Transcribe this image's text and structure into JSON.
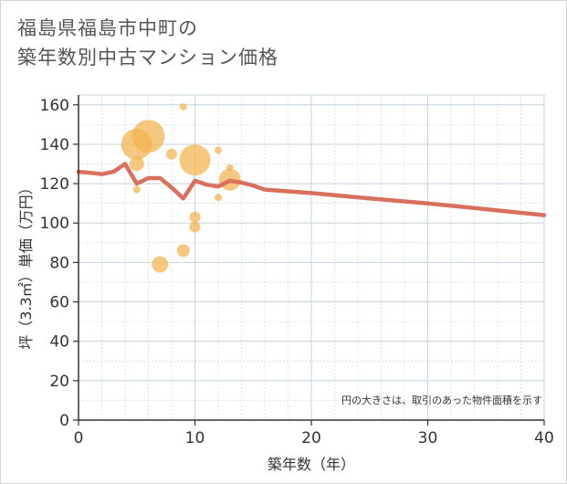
{
  "title_line1": "福島県福島市中町の",
  "title_line2": "築年数別中古マンション価格",
  "chart_data": {
    "type": "scatter",
    "title": "福島県福島市中町の築年数別中古マンション価格",
    "xlabel": "築年数（年）",
    "ylabel": "坪（3.3㎡）単価（万円）",
    "xlim": [
      0,
      40
    ],
    "ylim": [
      0,
      165
    ],
    "xticks": [
      0,
      10,
      20,
      30,
      40
    ],
    "yticks": [
      0,
      20,
      40,
      60,
      80,
      100,
      120,
      140,
      160
    ],
    "grid": true,
    "note": "円の大きさは、取引のあった物件面積を示す",
    "colors": {
      "bubble": "#f3b34d",
      "line": "#d9705e",
      "grid": "#c5d3df",
      "axis": "#333333"
    },
    "bubbles": [
      {
        "x": 9,
        "y": 159,
        "size": 4
      },
      {
        "x": 5,
        "y": 140,
        "size": 17
      },
      {
        "x": 6,
        "y": 144,
        "size": 18
      },
      {
        "x": 8,
        "y": 135,
        "size": 6
      },
      {
        "x": 5,
        "y": 130,
        "size": 8
      },
      {
        "x": 5,
        "y": 117,
        "size": 4
      },
      {
        "x": 10,
        "y": 132,
        "size": 17
      },
      {
        "x": 12,
        "y": 137,
        "size": 4
      },
      {
        "x": 13,
        "y": 128,
        "size": 4
      },
      {
        "x": 13,
        "y": 122,
        "size": 12
      },
      {
        "x": 12,
        "y": 113,
        "size": 4
      },
      {
        "x": 10,
        "y": 103,
        "size": 6
      },
      {
        "x": 10,
        "y": 98,
        "size": 6
      },
      {
        "x": 9,
        "y": 86,
        "size": 7
      },
      {
        "x": 7,
        "y": 79,
        "size": 9
      }
    ],
    "trend": {
      "x": [
        0,
        1,
        2,
        3,
        4,
        5,
        6,
        7,
        8,
        9,
        10,
        11,
        12,
        13,
        14,
        15,
        16,
        20,
        25,
        30,
        35,
        40
      ],
      "y": [
        126,
        125.5,
        124.8,
        126,
        130,
        120,
        122.8,
        122.8,
        118,
        112.5,
        121.5,
        119.5,
        118.5,
        121.5,
        120.5,
        119,
        117,
        115.2,
        112.5,
        110,
        107,
        104
      ]
    }
  }
}
